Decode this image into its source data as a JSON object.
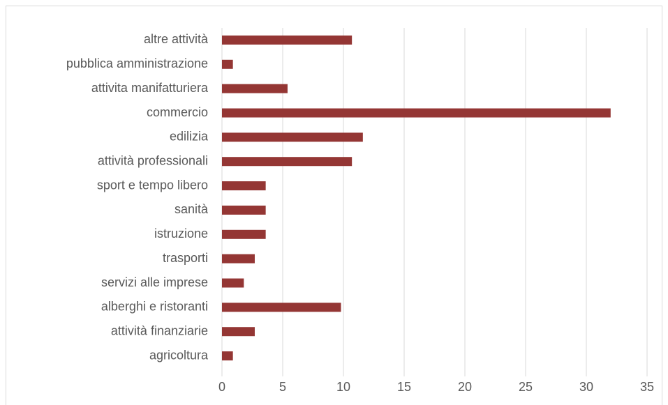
{
  "chart_data": {
    "type": "bar",
    "orientation": "horizontal",
    "categories": [
      "altre attività",
      "pubblica amministrazione",
      "attivita manifatturiera",
      "commercio",
      "edilizia",
      "attività professionali",
      "sport e tempo libero",
      "sanità",
      "istruzione",
      "trasporti",
      "servizi alle imprese",
      "alberghi e ristoranti",
      "attività finanziarie",
      "agricoltura"
    ],
    "values": [
      10.7,
      0.9,
      5.4,
      32.0,
      11.6,
      10.7,
      3.6,
      3.6,
      3.6,
      2.7,
      1.8,
      9.8,
      2.7,
      0.9
    ],
    "color": "#943634",
    "xlim": [
      0,
      35
    ],
    "xticks": [
      0,
      5,
      10,
      15,
      20,
      25,
      30,
      35
    ],
    "grid": true
  }
}
